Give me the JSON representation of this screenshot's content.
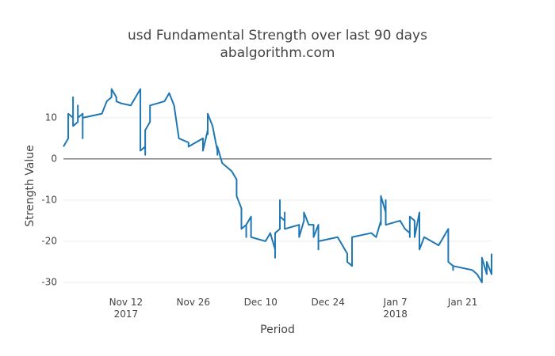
{
  "chart_data": {
    "type": "line",
    "title": "usd Fundamental Strength over last 90 days",
    "subtitle": "abalgorithm.com",
    "x_label": "Period",
    "y_label": "Strength Value",
    "color": "#1f77b4",
    "grid": true,
    "zero_line": true,
    "xlim": [
      "2017-10-30",
      "2018-01-27"
    ],
    "xticks": [
      {
        "value": "2017-11-12",
        "label": "Nov 12\n2017"
      },
      {
        "value": "2017-11-26",
        "label": "Nov 26"
      },
      {
        "value": "2017-12-10",
        "label": "Dec 10"
      },
      {
        "value": "2017-12-24",
        "label": "Dec 24"
      },
      {
        "value": "2018-01-07",
        "label": "Jan 7\n2018"
      },
      {
        "value": "2018-01-21",
        "label": "Jan 21"
      }
    ],
    "ylim": [
      -32.5,
      19.4
    ],
    "yticks": [
      -30,
      -20,
      -10,
      0,
      10
    ],
    "x": [
      "2017-10-30",
      "2017-10-31",
      "2017-10-31",
      "2017-11-01",
      "2017-11-01",
      "2017-11-01",
      "2017-11-02",
      "2017-11-02",
      "2017-11-02",
      "2017-11-03",
      "2017-11-03",
      "2017-11-03",
      "2017-11-07",
      "2017-11-08",
      "2017-11-09",
      "2017-11-09",
      "2017-11-10",
      "2017-11-10",
      "2017-11-11",
      "2017-11-13",
      "2017-11-14",
      "2017-11-15",
      "2017-11-15",
      "2017-11-16",
      "2017-11-16",
      "2017-11-16",
      "2017-11-17",
      "2017-11-17",
      "2017-11-20",
      "2017-11-21",
      "2017-11-22",
      "2017-11-23",
      "2017-11-25",
      "2017-11-25",
      "2017-11-28",
      "2017-11-28",
      "2017-11-29",
      "2017-11-29",
      "2017-11-29",
      "2017-11-30",
      "2017-12-01",
      "2017-12-01",
      "2017-12-01",
      "2017-12-02",
      "2017-12-04",
      "2017-12-05",
      "2017-12-05",
      "2017-12-06",
      "2017-12-06",
      "2017-12-07",
      "2017-12-07",
      "2017-12-07",
      "2017-12-08",
      "2017-12-08",
      "2017-12-11",
      "2017-12-12",
      "2017-12-13",
      "2017-12-13",
      "2017-12-13",
      "2017-12-14",
      "2017-12-14",
      "2017-12-14",
      "2017-12-15",
      "2017-12-15",
      "2017-12-15",
      "2017-12-18",
      "2017-12-18",
      "2017-12-19",
      "2017-12-19",
      "2017-12-20",
      "2017-12-21",
      "2017-12-21",
      "2017-12-22",
      "2017-12-22",
      "2017-12-22",
      "2017-12-26",
      "2017-12-28",
      "2017-12-28",
      "2017-12-29",
      "2017-12-29",
      "2018-01-02",
      "2018-01-03",
      "2018-01-04",
      "2018-01-04",
      "2018-01-04",
      "2018-01-05",
      "2018-01-05",
      "2018-01-05",
      "2018-01-08",
      "2018-01-09",
      "2018-01-10",
      "2018-01-10",
      "2018-01-10",
      "2018-01-11",
      "2018-01-11",
      "2018-01-12",
      "2018-01-12",
      "2018-01-13",
      "2018-01-16",
      "2018-01-17",
      "2018-01-18",
      "2018-01-18",
      "2018-01-19",
      "2018-01-19",
      "2018-01-19",
      "2018-01-23",
      "2018-01-24",
      "2018-01-25",
      "2018-01-25",
      "2018-01-25",
      "2018-01-26",
      "2018-01-26",
      "2018-01-27",
      "2018-01-27"
    ],
    "values": [
      3,
      5,
      11,
      10,
      15,
      8,
      9,
      13,
      10,
      11,
      5,
      10,
      11,
      14,
      15,
      17,
      15,
      14,
      13.5,
      13,
      15,
      17,
      2,
      3,
      1,
      7,
      9,
      13,
      14,
      16,
      13,
      5,
      4,
      3,
      5,
      2,
      7,
      6,
      11,
      8,
      2,
      1,
      3,
      -1,
      -3,
      -5,
      -9,
      -12,
      -17,
      -16,
      -19,
      -16,
      -14,
      -19,
      -20,
      -18,
      -22,
      -24,
      -18,
      -17,
      -10,
      -14,
      -15,
      -13,
      -17,
      -16,
      -19,
      -15,
      -13,
      -16,
      -16,
      -19,
      -16,
      -22,
      -20,
      -19,
      -23,
      -25,
      -26,
      -19,
      -18,
      -19,
      -15,
      -16,
      -9,
      -13,
      -10,
      -16,
      -15,
      -17,
      -18,
      -19,
      -14,
      -15,
      -19,
      -13,
      -22,
      -19,
      -21,
      -19,
      -17,
      -25,
      -26,
      -27,
      -26,
      -27,
      -28,
      -30,
      -27,
      -24,
      -28,
      -25,
      -28,
      -23
    ]
  }
}
